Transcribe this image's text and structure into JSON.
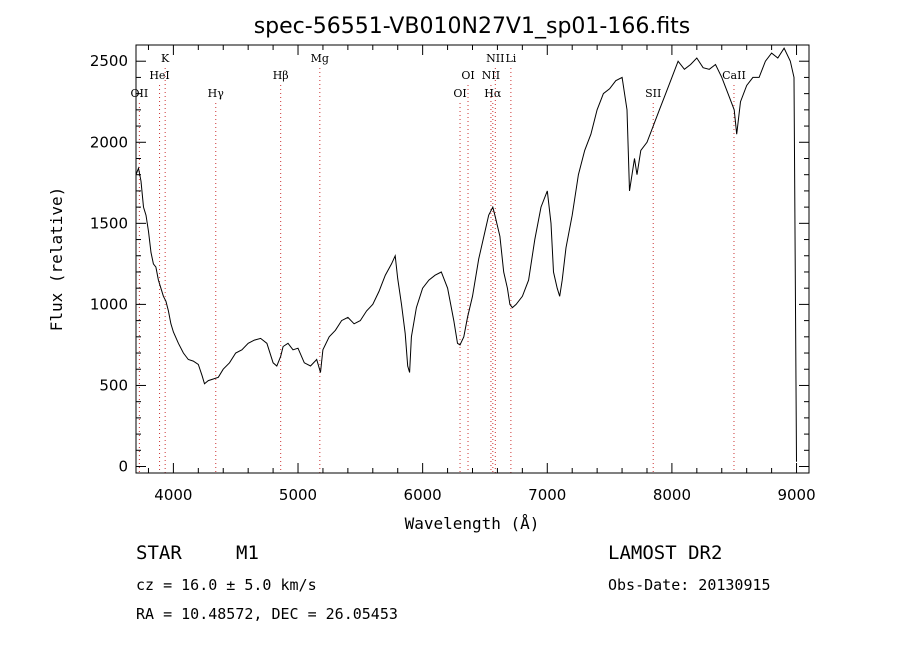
{
  "chart_data": {
    "type": "line",
    "title": "spec-56551-VB010N27V1_sp01-166.fits",
    "xlabel": "Wavelength (Å)",
    "ylabel": "Flux (relative)",
    "xlim": [
      3700,
      9100
    ],
    "ylim": [
      -40,
      2600
    ],
    "xticks": [
      4000,
      5000,
      6000,
      7000,
      8000,
      9000
    ],
    "yticks": [
      0,
      500,
      1000,
      1500,
      2000,
      2500
    ],
    "grid": false,
    "line_color": "#000000",
    "marker_color": "#cc3333",
    "series": [
      {
        "x": [
          3700,
          3720,
          3740,
          3760,
          3780,
          3800,
          3820,
          3840,
          3860,
          3880,
          3900,
          3920,
          3940,
          3960,
          3980,
          4000,
          4040,
          4080,
          4120,
          4160,
          4200,
          4230,
          4250,
          4280,
          4320,
          4360,
          4400,
          4450,
          4500,
          4550,
          4600,
          4650,
          4700,
          4750,
          4800,
          4830,
          4861,
          4880,
          4920,
          4960,
          5000,
          5050,
          5100,
          5150,
          5180,
          5200,
          5250,
          5300,
          5350,
          5400,
          5450,
          5500,
          5550,
          5600,
          5650,
          5700,
          5750,
          5780,
          5800,
          5830,
          5860,
          5880,
          5895,
          5910,
          5950,
          6000,
          6050,
          6100,
          6150,
          6200,
          6250,
          6280,
          6300,
          6330,
          6360,
          6400,
          6450,
          6500,
          6530,
          6563,
          6580,
          6620,
          6650,
          6680,
          6700,
          6720,
          6750,
          6800,
          6850,
          6900,
          6950,
          7000,
          7030,
          7050,
          7080,
          7100,
          7120,
          7150,
          7200,
          7250,
          7300,
          7350,
          7400,
          7450,
          7500,
          7550,
          7600,
          7640,
          7660,
          7680,
          7700,
          7720,
          7750,
          7800,
          7850,
          7900,
          7950,
          8000,
          8050,
          8100,
          8150,
          8200,
          8250,
          8300,
          8350,
          8400,
          8450,
          8500,
          8520,
          8550,
          8600,
          8650,
          8700,
          8750,
          8800,
          8850,
          8900,
          8950,
          8980,
          9000
        ],
        "y": [
          1800,
          1840,
          1760,
          1600,
          1550,
          1450,
          1320,
          1250,
          1230,
          1150,
          1100,
          1050,
          1020,
          960,
          880,
          830,
          760,
          700,
          660,
          650,
          630,
          560,
          510,
          530,
          540,
          550,
          600,
          640,
          700,
          720,
          760,
          780,
          790,
          760,
          640,
          620,
          680,
          740,
          760,
          720,
          730,
          640,
          620,
          660,
          580,
          720,
          800,
          840,
          900,
          920,
          880,
          900,
          960,
          1000,
          1080,
          1180,
          1250,
          1300,
          1160,
          1000,
          820,
          620,
          580,
          800,
          980,
          1100,
          1150,
          1180,
          1200,
          1100,
          900,
          760,
          750,
          800,
          920,
          1050,
          1280,
          1450,
          1550,
          1600,
          1550,
          1420,
          1200,
          1100,
          1000,
          980,
          1000,
          1050,
          1150,
          1400,
          1600,
          1700,
          1500,
          1200,
          1100,
          1050,
          1150,
          1350,
          1550,
          1800,
          1950,
          2050,
          2200,
          2300,
          2330,
          2380,
          2400,
          2200,
          1700,
          1800,
          1900,
          1800,
          1950,
          2000,
          2100,
          2200,
          2300,
          2400,
          2500,
          2450,
          2480,
          2520,
          2460,
          2450,
          2480,
          2400,
          2300,
          2200,
          2050,
          2250,
          2350,
          2400,
          2400,
          2500,
          2550,
          2520,
          2580,
          2500,
          2400,
          30
        ]
      }
    ],
    "line_markers": [
      {
        "x": 3727,
        "label": "OII",
        "row": 3
      },
      {
        "x": 3889,
        "label": "HeI",
        "row": 2
      },
      {
        "x": 3934,
        "label": "K",
        "row": 1
      },
      {
        "x": 4340,
        "label": "Hγ",
        "row": 3
      },
      {
        "x": 4861,
        "label": "Hβ",
        "row": 2
      },
      {
        "x": 5175,
        "label": "Mg",
        "row": 1
      },
      {
        "x": 6300,
        "label": "OI",
        "row": 3
      },
      {
        "x": 6364,
        "label": "OI",
        "row": 2
      },
      {
        "x": 6548,
        "label": "NII",
        "row": 2
      },
      {
        "x": 6563,
        "label": "Hα",
        "row": 3
      },
      {
        "x": 6583,
        "label": "NII",
        "row": 1
      },
      {
        "x": 6708,
        "label": "Li",
        "row": 1
      },
      {
        "x": 7850,
        "label": "SII",
        "row": 3
      },
      {
        "x": 8498,
        "label": "CaII",
        "row": 2
      }
    ]
  },
  "info": {
    "object_class": "STAR",
    "subclass": "M1",
    "survey": "LAMOST DR2",
    "redshift": "cz = 16.0 ± 5.0 km/s",
    "obs_date": "Obs-Date: 20130915",
    "coords": "RA =  10.48572, DEC =  26.05453"
  }
}
